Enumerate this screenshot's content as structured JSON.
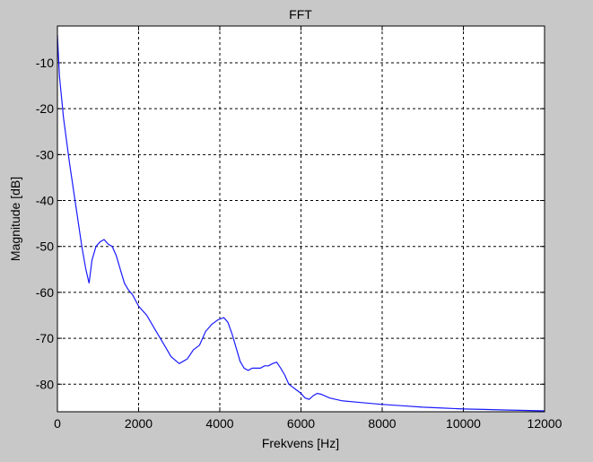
{
  "chart_data": {
    "type": "line",
    "title": "FFT",
    "xlabel": "Frekvens [Hz]",
    "ylabel": "Magnitude [dB]",
    "xlim": [
      0,
      12000
    ],
    "ylim": [
      -86,
      -2
    ],
    "x_ticks": [
      0,
      2000,
      4000,
      6000,
      8000,
      10000,
      12000
    ],
    "x_tick_labels": [
      "0",
      "2000",
      "4000",
      "6000",
      "8000",
      "10000",
      "12000"
    ],
    "y_ticks": [
      -10,
      -20,
      -30,
      -40,
      -50,
      -60,
      -70,
      -80
    ],
    "y_tick_labels": [
      "-10",
      "-20",
      "-30",
      "-40",
      "-50",
      "-60",
      "-70",
      "-80"
    ],
    "grid": true,
    "grid_style": "dashed",
    "colors": {
      "line": "#1a1aff",
      "axes_bg": "#ffffff",
      "figure_bg": "#c8c8c8",
      "grid": "#000000"
    },
    "series": [
      {
        "x": [
          0,
          50,
          150,
          300,
          450,
          600,
          700,
          780,
          850,
          950,
          1050,
          1150,
          1250,
          1350,
          1450,
          1550,
          1650,
          1750,
          1850,
          2000,
          2200,
          2400,
          2600,
          2800,
          3000,
          3100,
          3200,
          3350,
          3500,
          3650,
          3800,
          3950,
          4100,
          4200,
          4300,
          4400,
          4500,
          4600,
          4700,
          4800,
          4900,
          5000,
          5100,
          5200,
          5300,
          5400,
          5500,
          5600,
          5700,
          5850,
          6000,
          6100,
          6200,
          6300,
          6400,
          6500,
          6700,
          7000,
          7500,
          8000,
          8500,
          9000,
          9500,
          10000,
          10500,
          11000,
          11500,
          12000
        ],
        "values": [
          -4,
          -13,
          -22,
          -32,
          -41,
          -50,
          -55,
          -58,
          -53,
          -50,
          -49,
          -48.5,
          -49.5,
          -50,
          -52,
          -55,
          -58,
          -59.5,
          -60.5,
          -63,
          -65,
          -68,
          -71,
          -74,
          -75.5,
          -75,
          -74.5,
          -72.5,
          -71.5,
          -68.5,
          -67,
          -66,
          -65.5,
          -66.5,
          -69,
          -72,
          -75,
          -76.5,
          -77,
          -76.5,
          -76.5,
          -76.5,
          -76,
          -76,
          -75.5,
          -75.2,
          -76.5,
          -78,
          -80,
          -81,
          -82,
          -83,
          -83.3,
          -82.5,
          -82,
          -82.2,
          -83,
          -83.6,
          -84,
          -84.4,
          -84.7,
          -85,
          -85.2,
          -85.4,
          -85.5,
          -85.6,
          -85.7,
          -85.8
        ]
      }
    ]
  }
}
